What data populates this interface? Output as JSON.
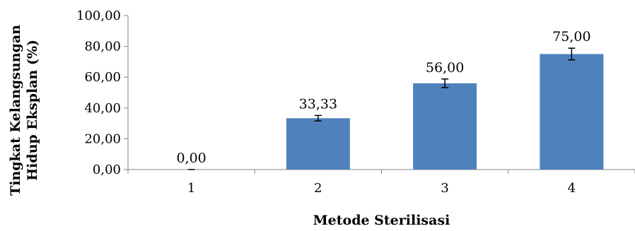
{
  "chart_data": {
    "type": "bar",
    "categories": [
      "1",
      "2",
      "3",
      "4"
    ],
    "values": [
      0.0,
      33.33,
      56.0,
      75.0
    ],
    "value_labels": [
      "0,00",
      "33,33",
      "56,00",
      "75,00"
    ],
    "error": [
      0.0,
      1.8,
      2.8,
      3.8
    ],
    "xlabel": "Metode Sterilisasi",
    "ylabel_line1": "Tingkat Kelangsungan",
    "ylabel_line2": "Hidup Eksplan (%)",
    "ylim": [
      0,
      100
    ],
    "yticks": [
      0,
      20,
      40,
      60,
      80,
      100
    ],
    "ytick_labels": [
      "0,00",
      "20,00",
      "40,00",
      "60,00",
      "80,00",
      "100,00"
    ],
    "grid": false,
    "bar_color": "#4F81BD"
  }
}
